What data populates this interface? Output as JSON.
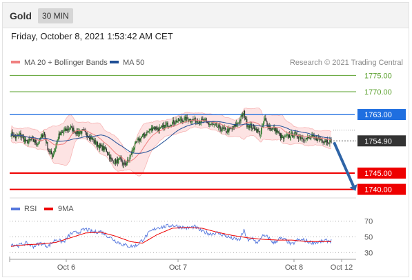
{
  "header": {
    "instrument": "Gold",
    "timeframe": "30 MIN"
  },
  "timestamp": "Friday, October 8, 2021 1:53:42 AM CET",
  "copyright": "Research © 2021 Trading Central",
  "colors": {
    "bollinger": "#f08080",
    "band_fill": "#fde3e3",
    "ma50": "#1f4e96",
    "resistance": "#5aa02c",
    "pivot": "#1f6fe0",
    "support": "#ee0000",
    "current": "#333333",
    "arrow": "#2e64a6",
    "rsi": "#5577dd",
    "rsi_ma": "#ee0000",
    "candle_up": "#2b7a2b",
    "candle_down": "#333333"
  },
  "chart_data": [
    {
      "type": "candlestick",
      "legend": [
        "MA 20 + Bollinger Bands",
        "MA 50"
      ],
      "legend_position": "top-left",
      "ylim": [
        1738.0,
        1777.0
      ],
      "x_ticks": [
        "Oct 6",
        "Oct 7",
        "Oct 8",
        "Oct 12"
      ],
      "last_price": "1754.90",
      "last_value": 1754.9,
      "levels": [
        {
          "label": "1775.00",
          "value": 1775.0,
          "role": "resistance",
          "style": "thin"
        },
        {
          "label": "1770.00",
          "value": 1770.0,
          "role": "resistance",
          "style": "thin"
        },
        {
          "label": "1763.00",
          "value": 1763.0,
          "role": "pivot",
          "style": "tag"
        },
        {
          "label": "1745.00",
          "value": 1745.0,
          "role": "support",
          "style": "tag"
        },
        {
          "label": "1740.00",
          "value": 1740.0,
          "role": "support",
          "style": "tag"
        }
      ],
      "close_anchors": [
        [
          0,
          1757.2
        ],
        [
          6,
          1756.0
        ],
        [
          12,
          1756.8
        ],
        [
          20,
          1754.5
        ],
        [
          28,
          1755.3
        ],
        [
          36,
          1754.0
        ],
        [
          44,
          1757.5
        ],
        [
          50,
          1752.0
        ],
        [
          56,
          1750.3
        ],
        [
          64,
          1756.5
        ],
        [
          72,
          1758.0
        ],
        [
          80,
          1759.0
        ],
        [
          88,
          1757.5
        ],
        [
          96,
          1757.8
        ],
        [
          104,
          1756.5
        ],
        [
          112,
          1754.5
        ],
        [
          120,
          1753.0
        ],
        [
          128,
          1752.0
        ],
        [
          134,
          1749.0
        ],
        [
          140,
          1748.5
        ],
        [
          146,
          1749.0
        ],
        [
          152,
          1747.5
        ],
        [
          158,
          1749.0
        ],
        [
          164,
          1752.8
        ],
        [
          170,
          1755.0
        ],
        [
          180,
          1757.0
        ],
        [
          190,
          1759.0
        ],
        [
          200,
          1758.5
        ],
        [
          210,
          1760.0
        ],
        [
          222,
          1761.0
        ],
        [
          232,
          1761.5
        ],
        [
          240,
          1761.5
        ],
        [
          250,
          1761.0
        ],
        [
          258,
          1761.0
        ],
        [
          266,
          1760.0
        ],
        [
          274,
          1759.5
        ],
        [
          282,
          1758.5
        ],
        [
          290,
          1758.0
        ],
        [
          298,
          1759.0
        ],
        [
          306,
          1761.0
        ],
        [
          312,
          1763.5
        ],
        [
          316,
          1760.0
        ],
        [
          320,
          1759.5
        ],
        [
          326,
          1759.0
        ],
        [
          334,
          1757.0
        ],
        [
          340,
          1761.5
        ],
        [
          346,
          1759.0
        ],
        [
          352,
          1758.5
        ],
        [
          356,
          1758.0
        ],
        [
          364,
          1755.5
        ],
        [
          372,
          1756.5
        ],
        [
          380,
          1757.0
        ],
        [
          388,
          1756.0
        ],
        [
          396,
          1755.5
        ],
        [
          404,
          1756.0
        ],
        [
          412,
          1755.5
        ],
        [
          420,
          1755.0
        ],
        [
          428,
          1754.9
        ]
      ]
    },
    {
      "type": "line",
      "legend": [
        "RSI",
        "9MA"
      ],
      "legend_position": "top-left",
      "ylim": [
        25,
        75
      ],
      "y_ticks": [
        70,
        50,
        30
      ],
      "rsi_anchors": [
        [
          0,
          41
        ],
        [
          10,
          39
        ],
        [
          20,
          42
        ],
        [
          30,
          38
        ],
        [
          40,
          42
        ],
        [
          50,
          38
        ],
        [
          60,
          47
        ],
        [
          70,
          43
        ],
        [
          80,
          54
        ],
        [
          90,
          56
        ],
        [
          100,
          60
        ],
        [
          110,
          56
        ],
        [
          120,
          57
        ],
        [
          130,
          51
        ],
        [
          140,
          45
        ],
        [
          150,
          40
        ],
        [
          160,
          38
        ],
        [
          168,
          39
        ],
        [
          176,
          46
        ],
        [
          186,
          56
        ],
        [
          196,
          62
        ],
        [
          206,
          63
        ],
        [
          216,
          65
        ],
        [
          226,
          63
        ],
        [
          236,
          61
        ],
        [
          246,
          63
        ],
        [
          256,
          57
        ],
        [
          266,
          54
        ],
        [
          276,
          55
        ],
        [
          286,
          52
        ],
        [
          296,
          48
        ],
        [
          306,
          46
        ],
        [
          312,
          58
        ],
        [
          318,
          44
        ],
        [
          324,
          49
        ],
        [
          330,
          41
        ],
        [
          336,
          51
        ],
        [
          344,
          50
        ],
        [
          352,
          42
        ],
        [
          360,
          48
        ],
        [
          368,
          46
        ],
        [
          376,
          40
        ],
        [
          384,
          46
        ],
        [
          392,
          46
        ],
        [
          402,
          43
        ],
        [
          412,
          43
        ],
        [
          420,
          45
        ],
        [
          428,
          45
        ]
      ],
      "ma_anchors": [
        [
          0,
          38
        ],
        [
          20,
          40
        ],
        [
          40,
          41
        ],
        [
          60,
          43
        ],
        [
          80,
          49
        ],
        [
          100,
          55
        ],
        [
          120,
          56
        ],
        [
          140,
          51
        ],
        [
          160,
          44
        ],
        [
          176,
          42
        ],
        [
          196,
          53
        ],
        [
          216,
          61
        ],
        [
          236,
          62
        ],
        [
          256,
          61
        ],
        [
          276,
          56
        ],
        [
          296,
          52
        ],
        [
          316,
          49
        ],
        [
          336,
          47
        ],
        [
          356,
          46
        ],
        [
          376,
          46
        ],
        [
          396,
          44
        ],
        [
          412,
          44
        ],
        [
          428,
          44
        ]
      ]
    }
  ]
}
